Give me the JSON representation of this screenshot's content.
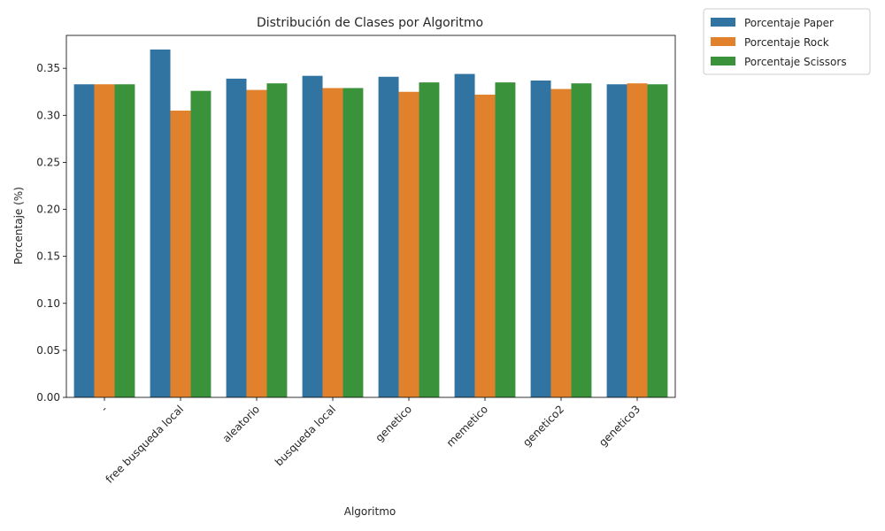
{
  "chart_data": {
    "type": "bar",
    "title": "Distribución de Clases por Algoritmo",
    "xlabel": "Algoritmo",
    "ylabel": "Porcentaje (%)",
    "ylim": [
      0,
      0.385
    ],
    "yticks": [
      "0.00",
      "0.05",
      "0.10",
      "0.15",
      "0.20",
      "0.25",
      "0.30",
      "0.35"
    ],
    "categories": [
      "-",
      "free busqueda local",
      "aleatorio",
      "busqueda local",
      "genetico",
      "memetico",
      "genetico2",
      "genetico3"
    ],
    "series": [
      {
        "name": "Porcentaje Paper",
        "color": "#3274a1",
        "values": [
          0.333,
          0.37,
          0.339,
          0.342,
          0.341,
          0.344,
          0.337,
          0.333
        ]
      },
      {
        "name": "Porcentaje Rock",
        "color": "#e1812c",
        "values": [
          0.333,
          0.305,
          0.327,
          0.329,
          0.325,
          0.322,
          0.328,
          0.334
        ]
      },
      {
        "name": "Porcentaje Scissors",
        "color": "#3a923a",
        "values": [
          0.333,
          0.326,
          0.334,
          0.329,
          0.335,
          0.335,
          0.334,
          0.333
        ]
      }
    ],
    "grid": false,
    "legend": "outside-top-right"
  }
}
